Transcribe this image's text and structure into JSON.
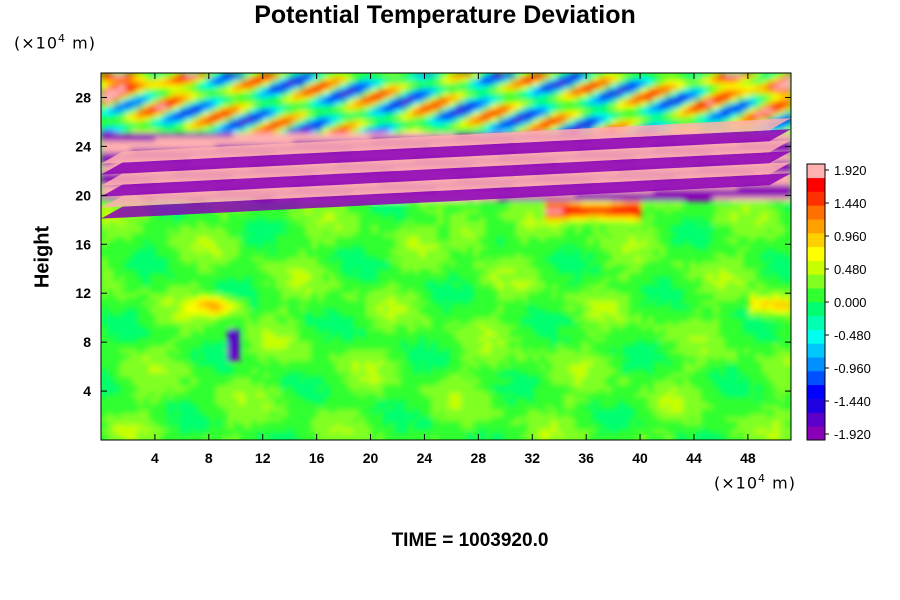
{
  "chart_data": {
    "type": "heatmap",
    "title": "Potential Temperature Deviation",
    "ylabel": "Height",
    "y_unit": "(×10",
    "y_unit_exp": "4",
    "y_unit_tail": " m)",
    "x_unit": "(×10",
    "x_unit_exp": "4",
    "x_unit_tail": " m)",
    "xlim": [
      0,
      51.2
    ],
    "ylim": [
      0,
      30
    ],
    "x_ticks": [
      "4",
      "8",
      "12",
      "16",
      "20",
      "24",
      "28",
      "32",
      "36",
      "40",
      "44",
      "48"
    ],
    "y_ticks": [
      "4",
      "8",
      "12",
      "16",
      "20",
      "24",
      "28"
    ],
    "colorbar": {
      "min": -1.92,
      "max": 1.92,
      "tick_labels": [
        "1.920",
        "1.440",
        "0.960",
        "0.480",
        "0.000",
        "-0.480",
        "-0.960",
        "-1.440",
        "-1.920"
      ],
      "colors": [
        "#8a00b8",
        "#5a00c8",
        "#1f00e0",
        "#0000ff",
        "#0050ff",
        "#0090ff",
        "#00c8ff",
        "#00ffee",
        "#00ffb0",
        "#00ff70",
        "#30ff30",
        "#80ff20",
        "#c8ff00",
        "#ffff00",
        "#ffd000",
        "#ffa000",
        "#ff7000",
        "#ff3000",
        "#ff0000",
        "#ffb0b0"
      ]
    },
    "structure": {
      "quiescent_region_height": [
        0,
        19.5
      ],
      "layered_band_height": [
        19.5,
        25
      ],
      "wave_region_height": [
        25,
        30
      ],
      "background_value": 0.15
    },
    "time_label": "TIME = 1003920.0"
  }
}
